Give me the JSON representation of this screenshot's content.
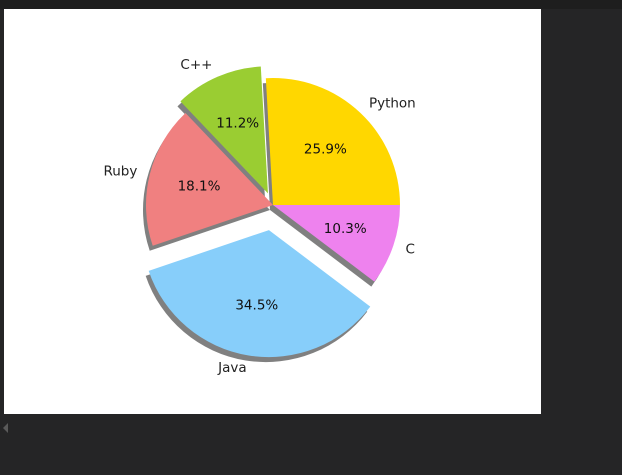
{
  "chart_data": {
    "type": "pie",
    "title": "",
    "slices": [
      {
        "label": "Python",
        "value": 25.9,
        "pct_label": "25.9%",
        "color": "#FFD700",
        "explode": 0
      },
      {
        "label": "C++",
        "value": 11.2,
        "pct_label": "11.2%",
        "color": "#9ACD32",
        "explode": 0.5
      },
      {
        "label": "Ruby",
        "value": 18.1,
        "pct_label": "18.1%",
        "color": "#F08080",
        "explode": 0
      },
      {
        "label": "Java",
        "value": 34.5,
        "pct_label": "34.5%",
        "color": "#87CEFA",
        "explode": 1
      },
      {
        "label": "C",
        "value": 10.3,
        "pct_label": "10.3%",
        "color": "#EE82EE",
        "explode": 0
      }
    ],
    "start_angle_deg": 0,
    "direction": "counterclockwise",
    "shadow": true
  }
}
